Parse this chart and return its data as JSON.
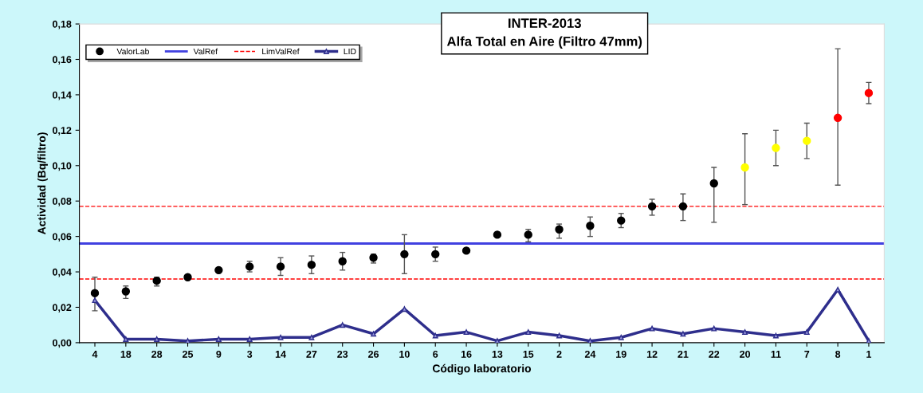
{
  "chart_data": {
    "type": "scatter",
    "title": "INTER-2013",
    "subtitle": "Alfa Total en Aire (Filtro 47mm)",
    "xlabel": "Código laboratorio",
    "ylabel": "Actividad (Bq/filtro)",
    "categories": [
      "4",
      "18",
      "28",
      "25",
      "9",
      "3",
      "14",
      "27",
      "23",
      "26",
      "10",
      "6",
      "16",
      "13",
      "15",
      "2",
      "24",
      "19",
      "12",
      "21",
      "22",
      "20",
      "11",
      "7",
      "8",
      "1"
    ],
    "series": [
      {
        "name": "ValorLab",
        "marker": "circle",
        "color": "#000000",
        "colors": [
          "#000000",
          "#000000",
          "#000000",
          "#000000",
          "#000000",
          "#000000",
          "#000000",
          "#000000",
          "#000000",
          "#000000",
          "#000000",
          "#000000",
          "#000000",
          "#000000",
          "#000000",
          "#000000",
          "#000000",
          "#000000",
          "#000000",
          "#000000",
          "#000000",
          "#ffff00",
          "#ffff00",
          "#ffff00",
          "#ff0000",
          "#ff0000"
        ],
        "values": [
          0.028,
          0.029,
          0.035,
          0.037,
          0.041,
          0.043,
          0.043,
          0.044,
          0.046,
          0.048,
          0.05,
          0.05,
          0.052,
          0.061,
          0.061,
          0.064,
          0.066,
          0.069,
          0.077,
          0.077,
          0.09,
          0.099,
          0.11,
          0.114,
          0.127,
          0.141
        ],
        "errors": [
          [
            0.018,
            0.037
          ],
          [
            0.025,
            0.032
          ],
          [
            0.032,
            0.037
          ],
          null,
          null,
          [
            0.04,
            0.046
          ],
          [
            0.038,
            0.048
          ],
          [
            0.039,
            0.049
          ],
          [
            0.041,
            0.051
          ],
          [
            0.045,
            0.05
          ],
          [
            0.039,
            0.061
          ],
          [
            0.046,
            0.054
          ],
          null,
          null,
          [
            0.057,
            0.064
          ],
          [
            0.059,
            0.067
          ],
          [
            0.06,
            0.071
          ],
          [
            0.065,
            0.073
          ],
          [
            0.072,
            0.081
          ],
          [
            0.069,
            0.084
          ],
          [
            0.068,
            0.099
          ],
          [
            0.078,
            0.118
          ],
          [
            0.1,
            0.12
          ],
          [
            0.104,
            0.124
          ],
          [
            0.089,
            0.166
          ],
          [
            0.135,
            0.147
          ]
        ]
      },
      {
        "name": "LID",
        "type": "line",
        "marker": "triangle",
        "line_style": "solid",
        "color": "#2e2e8c",
        "values": [
          0.024,
          0.002,
          0.002,
          0.001,
          0.002,
          0.002,
          0.003,
          0.003,
          0.01,
          0.005,
          0.019,
          0.004,
          0.006,
          0.001,
          0.006,
          0.004,
          0.001,
          0.003,
          0.008,
          0.005,
          0.008,
          0.006,
          0.004,
          0.006,
          0.03,
          0.001
        ]
      }
    ],
    "ref_lines": [
      {
        "axis": "y",
        "value": 0.056,
        "label": "ValRef",
        "color": "#4040e0",
        "line_style": "solid"
      },
      {
        "axis": "y",
        "value": 0.077,
        "label": "LimValRef",
        "color": "#ff0000",
        "line_style": "dashed"
      },
      {
        "axis": "y",
        "value": 0.036,
        "color": "#ff0000",
        "line_style": "dashed"
      }
    ],
    "ylim": [
      0,
      0.18
    ],
    "yticks": [
      {
        "value": 0,
        "label": "0,00"
      },
      {
        "value": 0.02,
        "label": "0,02"
      },
      {
        "value": 0.04,
        "label": "0,04"
      },
      {
        "value": 0.06,
        "label": "0,06"
      },
      {
        "value": 0.08,
        "label": "0,08"
      },
      {
        "value": 0.1,
        "label": "0,10"
      },
      {
        "value": 0.12,
        "label": "0,12"
      },
      {
        "value": 0.14,
        "label": "0,14"
      },
      {
        "value": 0.16,
        "label": "0,16"
      },
      {
        "value": 0.18,
        "label": "0,18"
      }
    ],
    "grid": false,
    "legend": "top left"
  }
}
